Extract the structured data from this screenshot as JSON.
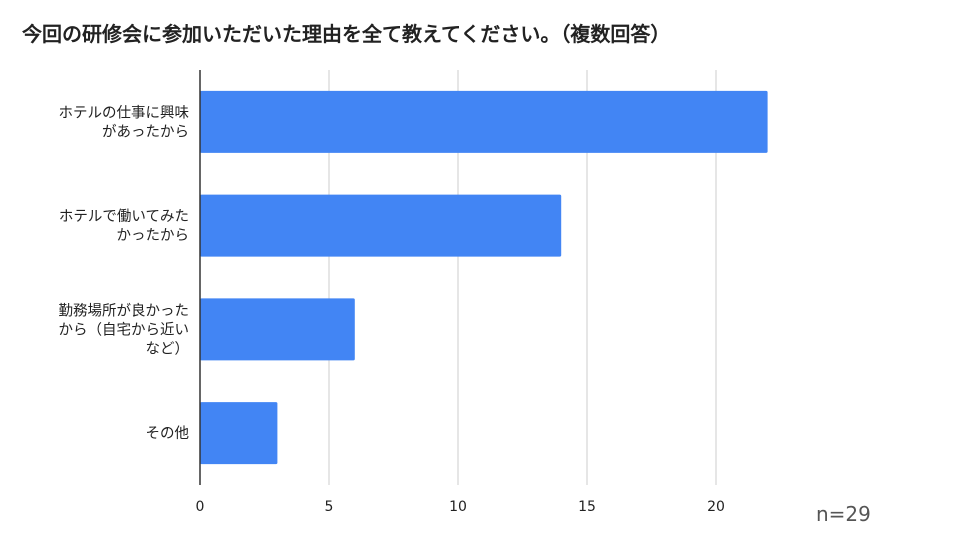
{
  "colors": {
    "bar": "#4285f4",
    "grid": "#cccccc",
    "axis": "#333333",
    "text": "#222222"
  },
  "note": "n=29",
  "chart_data": {
    "type": "bar",
    "orientation": "horizontal",
    "title": "今回の研修会に参加いただいた理由を全て教えてください。（複数回答）",
    "categories": [
      [
        "ホテルの仕事に興味",
        "があったから"
      ],
      [
        "ホテルで働いてみた",
        "かったから"
      ],
      [
        "勤務場所が良かった",
        "から（自宅から近い",
        "など）"
      ],
      [
        "その他"
      ]
    ],
    "values": [
      22,
      14,
      6,
      3
    ],
    "xlim": [
      0,
      25
    ],
    "xticks": [
      0,
      5,
      10,
      15,
      20
    ],
    "grid": true,
    "legend": "none"
  }
}
